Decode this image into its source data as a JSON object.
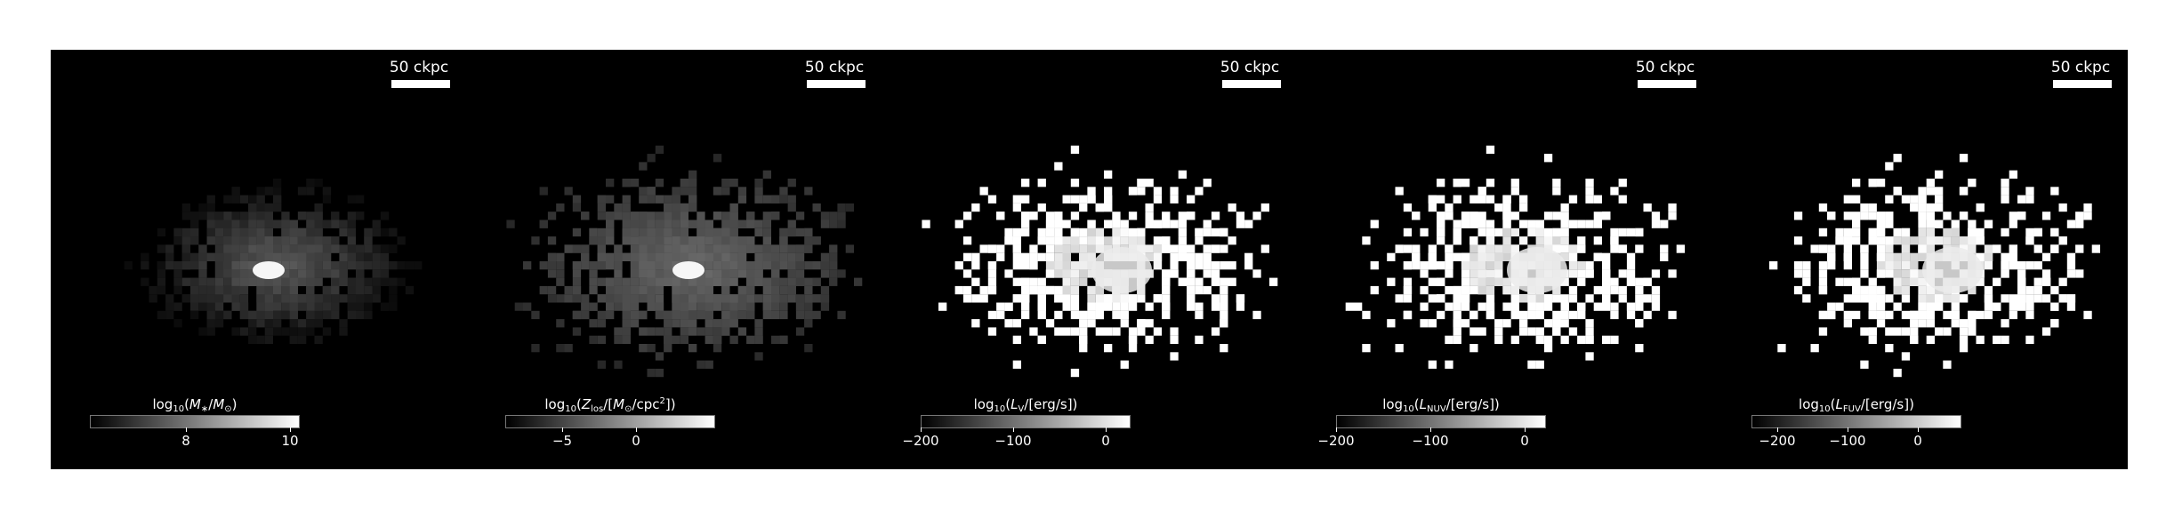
{
  "panels": [
    {
      "scalebar": "50 ckpc",
      "colorbar": {
        "label_pre": "log",
        "label_sub": "10",
        "label_main": "(M∗/M⊙)",
        "ticks": [
          "8",
          "10"
        ]
      },
      "style": "mass"
    },
    {
      "scalebar": "50 ckpc",
      "colorbar": {
        "label_pre": "log",
        "label_sub": "10",
        "label_main": "(Zlos/[M⊙/cpc2])",
        "ticks": [
          "−5",
          "0"
        ]
      },
      "style": "metal"
    },
    {
      "scalebar": "50 ckpc",
      "colorbar": {
        "label_pre": "log",
        "label_sub": "10",
        "label_main": "(LV/[erg/s])",
        "ticks": [
          "−200",
          "−100",
          "0"
        ]
      },
      "style": "lum"
    },
    {
      "scalebar": "50 ckpc",
      "colorbar": {
        "label_pre": "log",
        "label_sub": "10",
        "label_main": "(LNUV/[erg/s])",
        "ticks": [
          "−200",
          "−100",
          "0"
        ]
      },
      "style": "lum"
    },
    {
      "scalebar": "50 ckpc",
      "colorbar": {
        "label_pre": "log",
        "label_sub": "10",
        "label_main": "(LFUV/[erg/s])",
        "ticks": [
          "−200",
          "−100",
          "0"
        ]
      },
      "style": "lum"
    }
  ]
}
